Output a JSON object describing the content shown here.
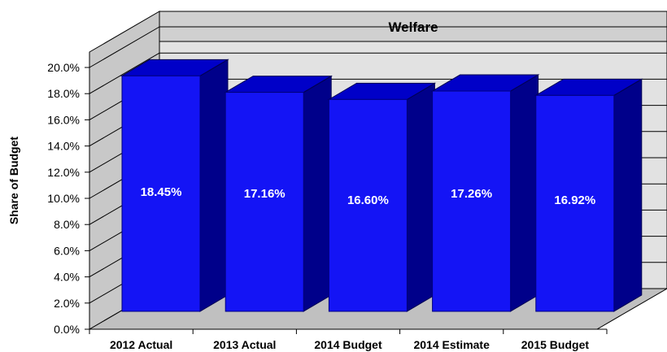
{
  "chart_data": {
    "type": "bar",
    "title": "Welfare",
    "xlabel": "",
    "ylabel": "Share of Budget",
    "categories": [
      "2012 Actual",
      "2013 Actual",
      "2014 Budget",
      "2014 Estimate",
      "2015 Budget"
    ],
    "values": [
      18.45,
      17.16,
      16.6,
      17.26,
      16.92
    ],
    "data_labels": [
      "18.45%",
      "17.16%",
      "16.60%",
      "17.26%",
      "16.92%"
    ],
    "ylim": [
      0,
      20
    ],
    "yticks": [
      "0.0%",
      "2.0%",
      "4.0%",
      "6.0%",
      "8.0%",
      "10.0%",
      "12.0%",
      "14.0%",
      "16.0%",
      "18.0%",
      "20.0%"
    ],
    "grid": true,
    "three_d": true,
    "legend": "none"
  },
  "colors": {
    "bar_front": "#1414f5",
    "bar_side": "#00008a",
    "bar_top": "#0000c8",
    "back_wall": "#e2e2e2",
    "side_wall": "#c8c8c8",
    "floor": "#c0c0c0",
    "title_band": "#d0d0d0"
  }
}
